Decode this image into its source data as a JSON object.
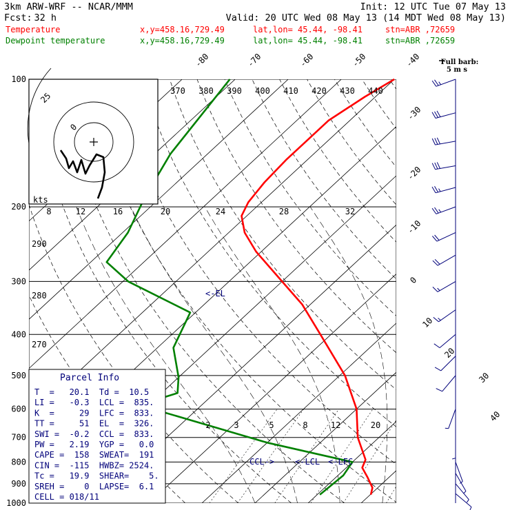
{
  "header": {
    "model": "3km ARW-WRF -- NCAR/MMM",
    "init": "Init: 12 UTC Tue 07 May 13",
    "fcst_label": "Fcst:",
    "fcst_value": "32 h",
    "valid": "Valid: 20 UTC Wed 08 May 13 (14 MDT Wed 08 May 13)",
    "temp_line": {
      "name": "Temperature",
      "xy": "x,y=458.16,729.49",
      "latlon": "lat,lon= 45.44, -98.41",
      "stn": "stn=ABR ,72659"
    },
    "dew_line": {
      "name": "Dewpoint temperature",
      "xy": "x,y=458.16,729.49",
      "latlon": "lat,lon= 45.44, -98.41",
      "stn": "stn=ABR ,72659"
    },
    "wind_legend": {
      "line1": "Full barb:",
      "line2": "5 m s"
    }
  },
  "colors": {
    "temperature": "#ff0000",
    "dewpoint": "#008000",
    "parcel_text": "#00007a",
    "grid": "#000000",
    "wind": "#00007a"
  },
  "chart_data": {
    "type": "line",
    "subtype": "skew-T log-P",
    "pressure_axis": {
      "ticks": [
        100,
        200,
        300,
        400,
        500,
        600,
        700,
        800,
        900,
        1000
      ],
      "scale": "log"
    },
    "isotherm_labels": [
      "-80",
      "-70",
      "-60",
      "-50",
      "-40",
      "-30",
      "-20",
      "-10",
      "0",
      "10",
      "20",
      "30",
      "40"
    ],
    "theta_labels": [
      "370",
      "380",
      "390",
      "400",
      "410",
      "420",
      "430",
      "440"
    ],
    "hodograph": {
      "ring_labels": [
        "25",
        "0"
      ],
      "speed_unit": "kts",
      "speed_ticks": [
        "8",
        "12",
        "16",
        "20",
        "24",
        "28",
        "32"
      ]
    },
    "theta_side_labels": [
      "290",
      "280",
      "270"
    ],
    "mixing_ratio_labels": [
      "2",
      "3",
      "5",
      "8",
      "12",
      "20"
    ],
    "annotations": {
      "el": "<-EL",
      "ccl": "CCL->",
      "lcl": "<-LCL",
      "lfc": "<-LFC"
    },
    "series": [
      {
        "name": "Temperature",
        "color": "#ff0000",
        "points": [
          {
            "p": 100,
            "t": -60
          },
          {
            "p": 110,
            "t": -62
          },
          {
            "p": 125,
            "t": -64
          },
          {
            "p": 140,
            "t": -64
          },
          {
            "p": 155,
            "t": -64
          },
          {
            "p": 175,
            "t": -63.5
          },
          {
            "p": 195,
            "t": -62.5
          },
          {
            "p": 210,
            "t": -61
          },
          {
            "p": 230,
            "t": -57
          },
          {
            "p": 255,
            "t": -51
          },
          {
            "p": 300,
            "t": -40
          },
          {
            "p": 340,
            "t": -31.5
          },
          {
            "p": 400,
            "t": -22
          },
          {
            "p": 500,
            "t": -9
          },
          {
            "p": 600,
            "t": 0
          },
          {
            "p": 700,
            "t": 6
          },
          {
            "p": 790,
            "t": 12
          },
          {
            "p": 825,
            "t": 13
          },
          {
            "p": 870,
            "t": 16
          },
          {
            "p": 920,
            "t": 19
          },
          {
            "p": 955,
            "t": 20.1
          }
        ]
      },
      {
        "name": "Dewpoint temperature",
        "color": "#008000",
        "points": [
          {
            "p": 100,
            "t": -91
          },
          {
            "p": 150,
            "t": -87
          },
          {
            "p": 190,
            "t": -83
          },
          {
            "p": 230,
            "t": -79
          },
          {
            "p": 270,
            "t": -77
          },
          {
            "p": 300,
            "t": -69
          },
          {
            "p": 355,
            "t": -51
          },
          {
            "p": 430,
            "t": -47
          },
          {
            "p": 505,
            "t": -40
          },
          {
            "p": 550,
            "t": -37
          },
          {
            "p": 565,
            "t": -39
          },
          {
            "p": 590,
            "t": -41
          },
          {
            "p": 720,
            "t": -10
          },
          {
            "p": 800,
            "t": 10
          },
          {
            "p": 860,
            "t": 11
          },
          {
            "p": 955,
            "t": 10.5
          }
        ]
      }
    ],
    "wind_profile": [
      {
        "p": 100,
        "dir": 250,
        "spd": 28
      },
      {
        "p": 120,
        "dir": 255,
        "spd": 30
      },
      {
        "p": 140,
        "dir": 260,
        "spd": 32
      },
      {
        "p": 160,
        "dir": 260,
        "spd": 30
      },
      {
        "p": 180,
        "dir": 255,
        "spd": 27
      },
      {
        "p": 200,
        "dir": 250,
        "spd": 24
      },
      {
        "p": 230,
        "dir": 245,
        "spd": 22
      },
      {
        "p": 260,
        "dir": 240,
        "spd": 20
      },
      {
        "p": 300,
        "dir": 240,
        "spd": 18
      },
      {
        "p": 350,
        "dir": 235,
        "spd": 14
      },
      {
        "p": 400,
        "dir": 230,
        "spd": 12
      },
      {
        "p": 450,
        "dir": 225,
        "spd": 11
      },
      {
        "p": 500,
        "dir": 220,
        "spd": 10
      },
      {
        "p": 600,
        "dir": 200,
        "spd": 8
      },
      {
        "p": 700,
        "dir": 180,
        "spd": 6
      },
      {
        "p": 800,
        "dir": 160,
        "spd": 6
      },
      {
        "p": 850,
        "dir": 150,
        "spd": 7
      },
      {
        "p": 900,
        "dir": 140,
        "spd": 6
      },
      {
        "p": 950,
        "dir": 130,
        "spd": 5
      }
    ]
  },
  "parcel_info": {
    "title": "Parcel Info",
    "rows": [
      "T  =   20.1  Td =  10.5",
      "LI =   -0.3  LCL =  835.",
      "K  =     29  LFC =  833.",
      "TT =     51  EL  =  326.",
      "SWI =  -0.2  CCL =  833.",
      "PW =   2.19  YGP =   0.0",
      "CAPE =  158  SWEAT=  191",
      "CIN =  -115  HWBZ= 2524.",
      "Tc =   19.9  SHEAR=    5.",
      "SREH =    0  LAPSE=  6.1",
      "CELL = 018/11"
    ]
  }
}
